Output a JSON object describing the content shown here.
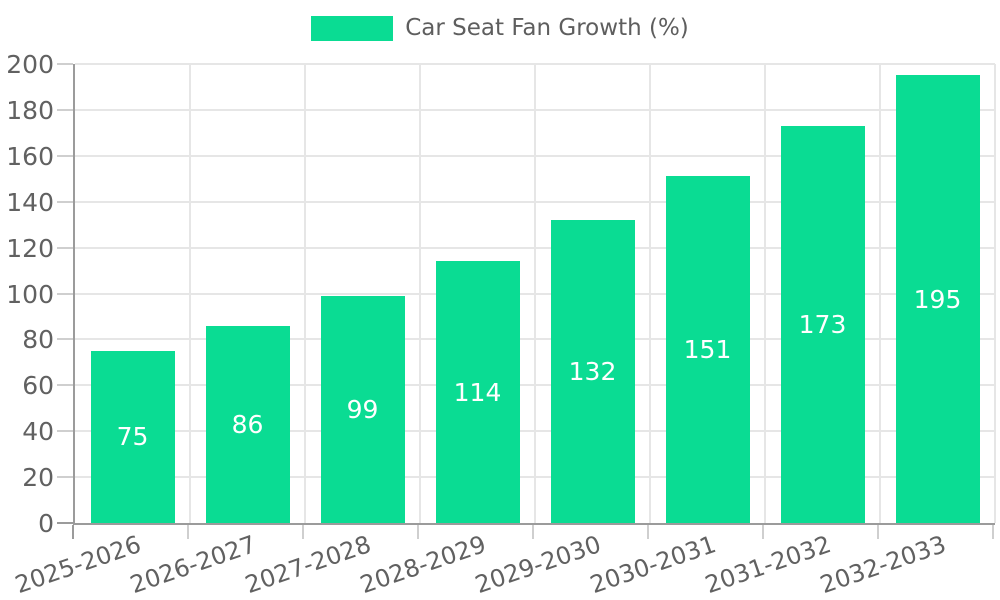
{
  "legend": {
    "label": "Car Seat Fan Growth (%)"
  },
  "colors": {
    "bar": "#0adc93",
    "axis": "#9b9b9b",
    "grid": "#e6e6e6",
    "tick": "#cfcfcf",
    "tick_label": "#616161",
    "legend_text": "#5e5e5e",
    "bar_label": "#ffffff",
    "background": "#ffffff"
  },
  "chart_data": {
    "type": "bar",
    "title": "Car Seat Fan Growth (%)",
    "categories": [
      "2025-2026",
      "2026-2027",
      "2027-2028",
      "2028-2029",
      "2029-2030",
      "2030-2031",
      "2031-2032",
      "2032-2033"
    ],
    "values": [
      75,
      86,
      99,
      114,
      132,
      151,
      173,
      195
    ],
    "xlabel": "",
    "ylabel": "",
    "ylim": [
      0,
      200
    ],
    "yticks": [
      0,
      20,
      40,
      60,
      80,
      100,
      120,
      140,
      160,
      180,
      200
    ],
    "grid": true,
    "grid_vertical": true,
    "legend_position": "top-center",
    "bar_label_position": "center",
    "x_tick_rotation_deg": -19
  }
}
